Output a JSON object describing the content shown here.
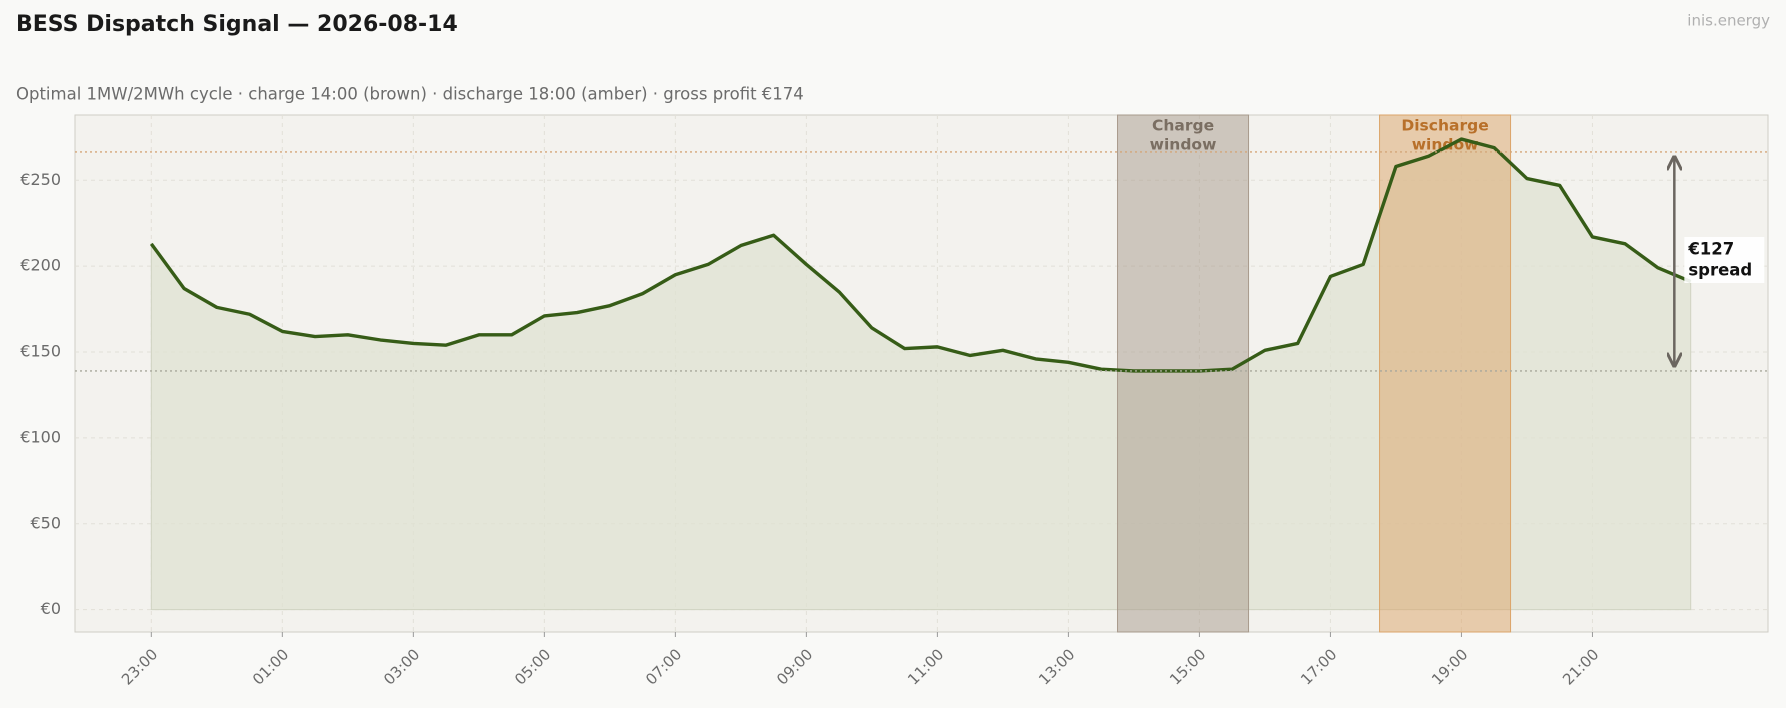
{
  "chart_data": {
    "type": "line",
    "title": "BESS Dispatch Signal — 2026-08-14",
    "subtitle": "Optimal 1MW/2MWh cycle  ·  charge 14:00 (brown)  ·  discharge 18:00 (amber)  ·  gross profit €174",
    "brand": "inis.energy",
    "categories": [
      "23:00",
      null,
      null,
      null,
      "01:00",
      null,
      null,
      null,
      "03:00",
      null,
      null,
      null,
      "05:00",
      null,
      null,
      null,
      "07:00",
      null,
      null,
      null,
      "09:00",
      null,
      null,
      null,
      "11:00",
      null,
      null,
      null,
      "13:00",
      null,
      null,
      null,
      "15:00",
      null,
      null,
      null,
      "17:00",
      null,
      null,
      null,
      "19:00",
      null,
      null,
      null,
      "21:00",
      null,
      null,
      null
    ],
    "series": [
      {
        "color": "#365c17",
        "values": [
          213,
          187,
          176,
          172,
          162,
          159,
          160,
          157,
          155,
          154,
          160,
          160,
          171,
          173,
          177,
          184,
          195,
          201,
          212,
          218,
          201,
          185,
          164,
          152,
          153,
          148,
          151,
          146,
          144,
          140,
          139,
          139,
          139,
          140,
          151,
          155,
          194,
          201,
          258,
          264,
          274,
          269,
          251,
          247,
          217,
          213,
          199,
          191
        ]
      }
    ],
    "ylim": [
      -13,
      288
    ],
    "yticks": [
      {
        "value": 0,
        "label": "€0"
      },
      {
        "value": 50,
        "label": "€50"
      },
      {
        "value": 100,
        "label": "€100"
      },
      {
        "value": 150,
        "label": "€150"
      },
      {
        "value": 200,
        "label": "€200"
      },
      {
        "value": 250,
        "label": "€250"
      }
    ],
    "grid": true,
    "windows": [
      {
        "label_lines": [
          "Charge",
          "window"
        ],
        "start": 29.5,
        "end": 33.5,
        "color": "#a89a8c",
        "text_color": "#7a6e62"
      },
      {
        "label_lines": [
          "Discharge",
          "window"
        ],
        "start": 37.5,
        "end": 41.5,
        "color": "#dba468",
        "text_color": "#b8702a"
      }
    ],
    "reference_lines": [
      {
        "value": 266.5,
        "color": "#d4a679"
      },
      {
        "value": 139,
        "color": "#a8a89c"
      }
    ],
    "annotation": {
      "lines": [
        "€127",
        "spread"
      ],
      "at": 46.5
    }
  }
}
